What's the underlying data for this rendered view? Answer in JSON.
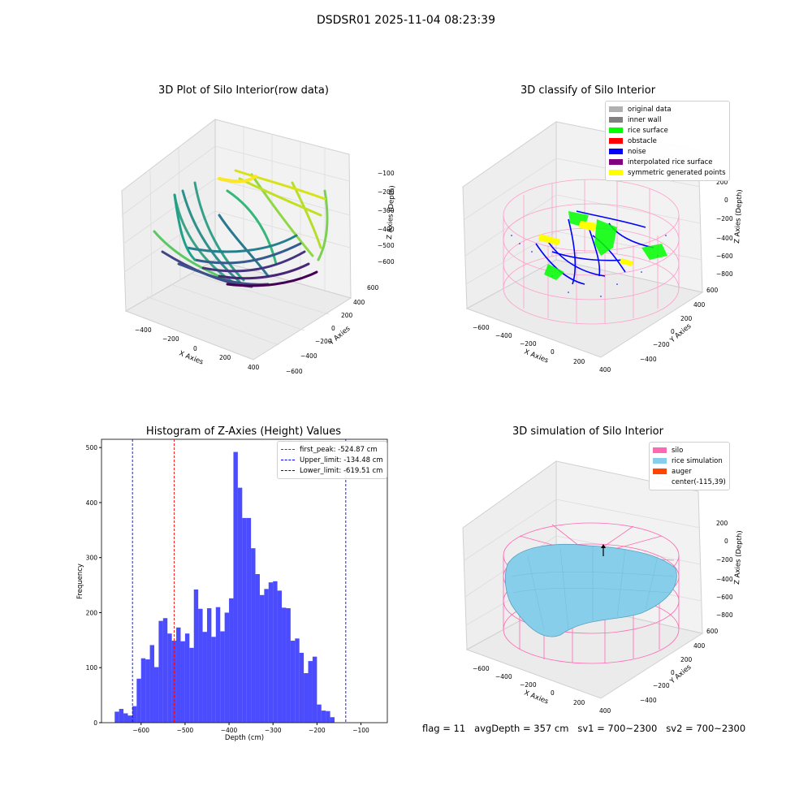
{
  "suptitle": "DSDSR01 2025-11-04 08:23:39",
  "panel1": {
    "title": "3D Plot of Silo Interior(row data)",
    "xlabel": "X Axies",
    "ylabel": "Y Axies",
    "zlabel": "Z Axies (Depth)",
    "xticks": [
      "−400",
      "−200",
      "0",
      "200",
      "400"
    ],
    "yticks": [
      "−600",
      "−400",
      "−200",
      "0",
      "200",
      "400",
      "600"
    ],
    "zticks": [
      "−100",
      "−200",
      "−300",
      "−400",
      "−500",
      "−600"
    ]
  },
  "panel2": {
    "title": "3D classify of Silo Interior",
    "xlabel": "X Axies",
    "ylabel": "Y Axies",
    "zlabel": "Z Axies (Depth)",
    "xticks": [
      "−600",
      "−400",
      "−200",
      "0",
      "200",
      "400"
    ],
    "yticks": [
      "−400",
      "−200",
      "0",
      "200",
      "400",
      "600"
    ],
    "zticks": [
      "200",
      "0",
      "−200",
      "−400",
      "−600",
      "−800"
    ],
    "legend": [
      {
        "label": "original data",
        "color": "#b0b0b0"
      },
      {
        "label": "inner wall",
        "color": "#808080"
      },
      {
        "label": "rice surface",
        "color": "#00ff00"
      },
      {
        "label": "obstacle",
        "color": "#ff0000"
      },
      {
        "label": "noise",
        "color": "#0000ff"
      },
      {
        "label": "interpolated rice surface",
        "color": "#800080"
      },
      {
        "label": "symmetric generated points",
        "color": "#ffff00"
      }
    ]
  },
  "panel4": {
    "title": "3D simulation of Silo Interior",
    "xlabel": "X Axies",
    "ylabel": "Y Axies",
    "zlabel": "Z Axies (Depth)",
    "xticks": [
      "−600",
      "−400",
      "−200",
      "0",
      "200",
      "400"
    ],
    "yticks": [
      "−400",
      "−200",
      "0",
      "200",
      "400",
      "600"
    ],
    "zticks": [
      "200",
      "0",
      "−200",
      "−400",
      "−600",
      "−800"
    ],
    "legend": [
      {
        "label": "silo",
        "color": "#ff69b4"
      },
      {
        "label": "rice simulation",
        "color": "#87ceeb"
      },
      {
        "label": "auger",
        "color": "#ff4500"
      },
      {
        "label": "center(-115,39)",
        "color": ""
      }
    ]
  },
  "status": {
    "flag": "flag = 11",
    "avg_depth": "avgDepth = 357 cm",
    "sv1": "sv1 = 700~2300",
    "sv2": "sv2 = 700~2300"
  },
  "chart_data": [
    {
      "type": "histogram",
      "title": "Histogram of Z-Axies (Height) Values",
      "xlabel": "Depth (cm)",
      "ylabel": "Frequency",
      "xlim": [
        -690,
        -40
      ],
      "ylim": [
        0,
        515
      ],
      "bin_width": 10,
      "bin_start": -660,
      "color": "#0000ff",
      "values": [
        20,
        25,
        17,
        13,
        30,
        80,
        117,
        115,
        141,
        101,
        185,
        190,
        162,
        149,
        173,
        148,
        162,
        136,
        242,
        207,
        165,
        208,
        156,
        210,
        166,
        200,
        226,
        492,
        427,
        372,
        372,
        317,
        270,
        232,
        243,
        255,
        257,
        240,
        209,
        208,
        149,
        153,
        127,
        90,
        112,
        120,
        33,
        22,
        21,
        10
      ],
      "xticks": [
        -600,
        -500,
        -400,
        -300,
        -200,
        -100
      ],
      "yticks": [
        0,
        100,
        200,
        300,
        400,
        500
      ],
      "lines": [
        {
          "label": "first_peak: -524.87 cm",
          "x": -524.87,
          "color": "#ff0000"
        },
        {
          "label": "Upper_limit: -134.48 cm",
          "x": -134.48,
          "color": "#0000ff"
        },
        {
          "label": "Lower_limit: -619.51 cm",
          "x": -619.51,
          "color": "#0000ff"
        }
      ],
      "legend_position": "top-right"
    }
  ]
}
